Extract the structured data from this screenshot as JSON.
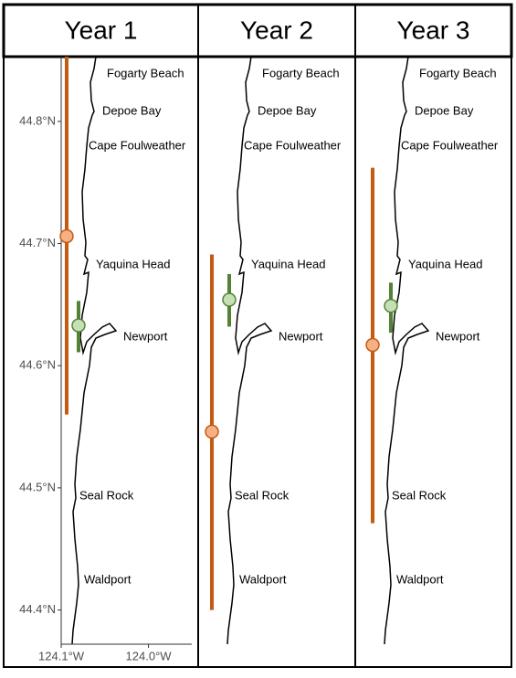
{
  "chart_data": [
    {
      "type": "errorbar",
      "title": "Year 1",
      "ylim": [
        44.372,
        44.853
      ],
      "yticks": [
        {
          "value": 44.8,
          "label": "44.8°N"
        },
        {
          "value": 44.7,
          "label": "44.7°N"
        },
        {
          "value": 44.6,
          "label": "44.6°N"
        },
        {
          "value": 44.5,
          "label": "44.5°N"
        },
        {
          "value": 44.4,
          "label": "44.4°N"
        }
      ],
      "xlim": [
        -124.166,
        -123.943
      ],
      "xticks": [
        {
          "value": -124.1,
          "label": "124.1°W"
        },
        {
          "value": -124.0,
          "label": "124.0°W"
        }
      ],
      "places": [
        "Fogarty Beach",
        "Depoe Bay",
        "Cape Foulweather",
        "Yaquina Head",
        "Newport",
        "Seal Rock",
        "Waldport"
      ],
      "series": [
        {
          "color": "#c55a11",
          "fill": "#f4b183",
          "values": [
            44.706
          ],
          "low": [
            44.56
          ],
          "high": [
            44.853
          ]
        },
        {
          "color": "#548235",
          "fill": "#c5e0b4",
          "values": [
            44.633
          ],
          "low": [
            44.611
          ],
          "high": [
            44.653
          ]
        }
      ]
    },
    {
      "type": "errorbar",
      "title": "Year 2",
      "ylim": [
        44.372,
        44.853
      ],
      "places": [
        "Fogarty Beach",
        "Depoe Bay",
        "Cape Foulweather",
        "Yaquina Head",
        "Newport",
        "Seal Rock",
        "Waldport"
      ],
      "series": [
        {
          "color": "#c55a11",
          "fill": "#f4b183",
          "values": [
            44.546
          ],
          "low": [
            44.4
          ],
          "high": [
            44.691
          ]
        },
        {
          "color": "#548235",
          "fill": "#c5e0b4",
          "values": [
            44.654
          ],
          "low": [
            44.632
          ],
          "high": [
            44.675
          ]
        }
      ]
    },
    {
      "type": "errorbar",
      "title": "Year 3",
      "ylim": [
        44.372,
        44.853
      ],
      "places": [
        "Fogarty Beach",
        "Depoe Bay",
        "Cape Foulweather",
        "Yaquina Head",
        "Newport",
        "Seal Rock",
        "Waldport"
      ],
      "series": [
        {
          "color": "#c55a11",
          "fill": "#f4b183",
          "values": [
            44.617
          ],
          "low": [
            44.471
          ],
          "high": [
            44.762
          ]
        },
        {
          "color": "#548235",
          "fill": "#c5e0b4",
          "values": [
            44.649
          ],
          "low": [
            44.627
          ],
          "high": [
            44.668
          ]
        }
      ]
    }
  ]
}
